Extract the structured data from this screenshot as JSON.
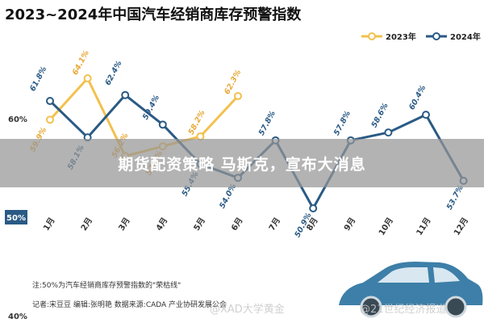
{
  "chart_data": {
    "type": "line",
    "title": "2023~2024年中国汽车经销商库存预警指数",
    "categories": [
      "1月",
      "2月",
      "3月",
      "4月",
      "5月",
      "6月",
      "7月",
      "8月",
      "9月",
      "10月",
      "11月",
      "12月"
    ],
    "series": [
      {
        "name": "2023年",
        "color": "#f2c14e",
        "marker_fill": "#ffffff",
        "values": [
          59.9,
          64.1,
          56.2,
          57.2,
          58.2,
          62.3,
          null,
          null,
          null,
          null,
          null,
          null
        ],
        "labels": [
          "59.9%",
          "64.1%",
          "56.2%",
          "57.2%",
          "58.2%",
          "62.3%",
          null,
          null,
          null,
          null,
          null,
          null
        ]
      },
      {
        "name": "2024年",
        "color": "#2a5a85",
        "marker_fill": "#ffffff",
        "values": [
          61.8,
          58.1,
          62.4,
          59.4,
          55.4,
          54.0,
          57.8,
          50.9,
          57.8,
          58.6,
          60.4,
          53.7
        ],
        "labels": [
          "61.8%",
          "58.1%",
          "62.4%",
          "59.4%",
          "55.4%",
          "54.0%",
          "57.8%",
          "50.9%",
          "57.8%",
          "58.6%",
          "60.4%",
          "53.7%"
        ]
      }
    ],
    "y_ticks": [
      {
        "value": 60,
        "label": "60%"
      },
      {
        "value": 50,
        "label": "50%",
        "highlight": true
      },
      {
        "value": 40,
        "label": "40%"
      }
    ],
    "ylim": [
      40,
      66
    ],
    "legend_position": "top-right",
    "grid": false,
    "notes": [
      "注:50%为汽车经销商库存预警指数的\"荣枯线\"",
      "记者:宋豆豆 编辑:张明艳 数据来源:CADA 产业协研发展公会"
    ]
  },
  "overlay": {
    "banner_text": "期货配资策略 马斯克，宣布大消息"
  },
  "watermarks": [
    "@XAD大学黄金",
    "@21世纪经济报道"
  ],
  "colors": {
    "bg": "#ffffff",
    "axis_text": "#333333",
    "label_text_2023": "#e8a93a",
    "label_text_2024": "#2a5a85",
    "highlight_tick_bg": "#2a5a85",
    "car_body": "#3d7fa8",
    "car_window": "#d9e7f1",
    "car_wheel": "#3a4a55"
  }
}
